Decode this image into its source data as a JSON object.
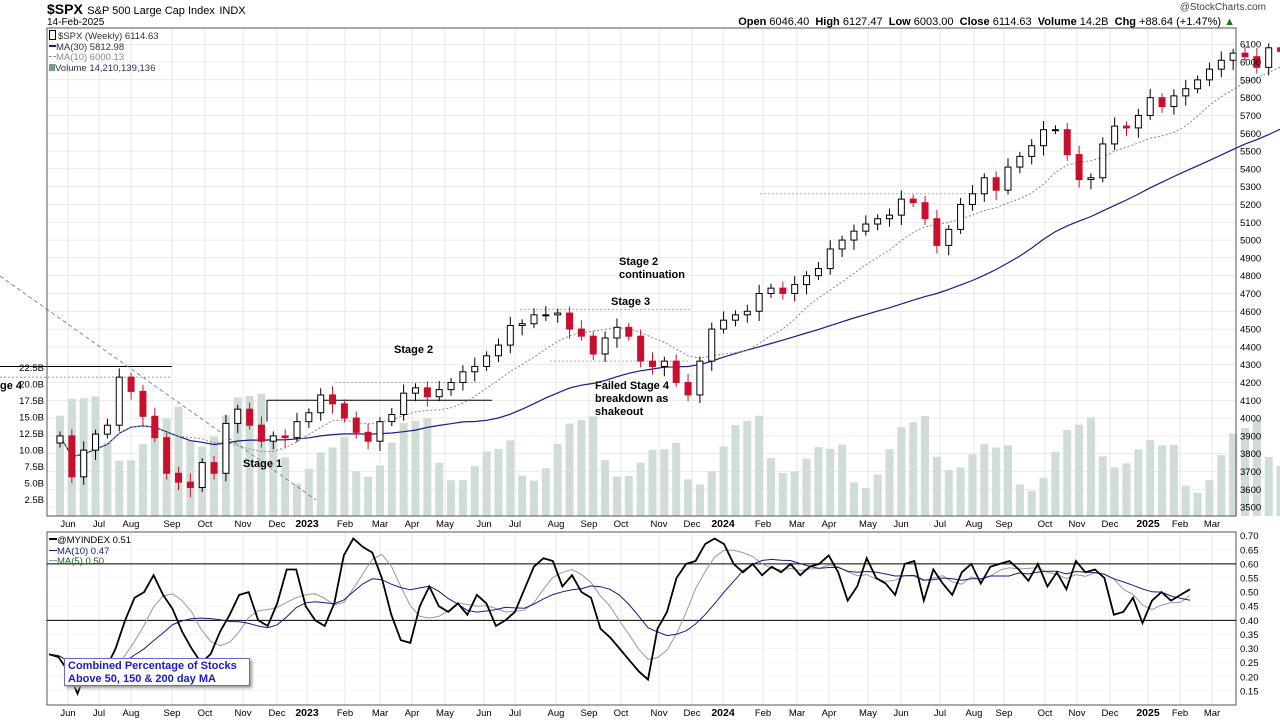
{
  "header": {
    "symbol": "$SPX",
    "name": "S&P 500 Large Cap Index",
    "exchange": "INDX",
    "date": "14-Feb-2025",
    "watermark": "@StockCharts.com",
    "open_label": "Open",
    "open": "6046.40",
    "high_label": "High",
    "high": "6127.47",
    "low_label": "Low",
    "low": "6003.00",
    "close_label": "Close",
    "close": "6114.63",
    "volume_label": "Volume",
    "volume": "14.2B",
    "chg_label": "Chg",
    "chg": "+88.64 (+1.47%)",
    "chg_arrow": "▲"
  },
  "legend_top": {
    "series": "$SPX (Weekly) 6114.63",
    "ma30": "MA(30) 5812.98",
    "ma10": "MA(10) 6000.13",
    "volume": "Volume 14,210,139,136"
  },
  "legend_bottom": {
    "series": "@MYINDEX 0.51",
    "ma10": "MA(10) 0.47",
    "ma5": "MA(5) 0.50"
  },
  "annotations": {
    "stage1": "Stage 1",
    "stage2": "Stage 2",
    "stage3": "Stage 3",
    "stage2c_l1": "Stage 2",
    "stage2c_l2": "continuation",
    "failed_l1": "Failed Stage 4",
    "failed_l2": "breakdown as",
    "failed_l3": "shakeout",
    "left_cut": "ge 4",
    "indicator_box_l1": "Combined Percentage of Stocks",
    "indicator_box_l2": "Above 50, 150 & 200 day MA"
  },
  "colors": {
    "up": "#000000",
    "down": "#c8102e",
    "ma30": "#1a1a8c",
    "ma10": "#888888",
    "volume": "#cfddd6",
    "grid": "#d8d8d8"
  },
  "chart_data": [
    {
      "type": "candlestick",
      "title": "$SPX S&P 500 Large Cap Index INDX",
      "interval": "Weekly",
      "ylim": [
        3450,
        6180
      ],
      "y_ticks": [
        3500,
        3600,
        3700,
        3800,
        3900,
        4000,
        4100,
        4200,
        4300,
        4400,
        4500,
        4600,
        4700,
        4800,
        4900,
        5000,
        5100,
        5200,
        5300,
        5400,
        5500,
        5600,
        5700,
        5800,
        5900,
        6000,
        6100
      ],
      "x_tick_labels": [
        "Jun",
        "Jul",
        "Aug",
        "Sep",
        "Oct",
        "Nov",
        "Dec",
        "2023",
        "Feb",
        "Mar",
        "Apr",
        "May",
        "Jun",
        "Jul",
        "Aug",
        "Sep",
        "Oct",
        "Nov",
        "Dec",
        "2024",
        "Feb",
        "Mar",
        "Apr",
        "May",
        "Jun",
        "Jul",
        "Aug",
        "Sep",
        "Oct",
        "Nov",
        "Dec",
        "2025",
        "Feb",
        "Mar"
      ],
      "close": [
        3900,
        3670,
        3820,
        3910,
        3960,
        4230,
        4150,
        4010,
        3890,
        3690,
        3640,
        3610,
        3750,
        3690,
        3970,
        4050,
        3960,
        3870,
        3900,
        3890,
        3980,
        4030,
        4130,
        4080,
        4000,
        3920,
        3870,
        3980,
        4020,
        4140,
        4170,
        4120,
        4160,
        4200,
        4260,
        4290,
        4350,
        4410,
        4520,
        4530,
        4580,
        4580,
        4590,
        4500,
        4460,
        4360,
        4450,
        4510,
        4460,
        4320,
        4290,
        4320,
        4200,
        4130,
        4320,
        4500,
        4550,
        4580,
        4600,
        4700,
        4730,
        4700,
        4750,
        4800,
        4840,
        4950,
        5000,
        5050,
        5090,
        5120,
        5140,
        5230,
        5210,
        5120,
        4970,
        5060,
        5200,
        5260,
        5350,
        5280,
        5410,
        5470,
        5530,
        5620,
        5620,
        5480,
        5340,
        5350,
        5540,
        5640,
        5630,
        5700,
        5800,
        5750,
        5810,
        5850,
        5900,
        5960,
        6010,
        6050,
        6030,
        5970,
        6080,
        6060,
        5950,
        5990,
        5930,
        6080,
        6120
      ],
      "ma30_final": 5812.98,
      "ma10_final": 6000.13,
      "volume_ylim": [
        0,
        30
      ],
      "volume_ticks": [
        "2.5B",
        "5.0B",
        "7.5B",
        "10.0B",
        "12.5B",
        "15.0B",
        "17.5B",
        "20.0B",
        "22.5B"
      ],
      "volume_final_B": 14.2
    },
    {
      "type": "line",
      "title": "@MYINDEX",
      "ylim": [
        0.1,
        0.72
      ],
      "y_ticks": [
        0.15,
        0.2,
        0.25,
        0.3,
        0.35,
        0.4,
        0.45,
        0.5,
        0.55,
        0.6,
        0.65,
        0.7
      ],
      "reference_lines": [
        0.4,
        0.6
      ],
      "series": [
        {
          "name": "@MYINDEX",
          "final": 0.51
        },
        {
          "name": "MA(10)",
          "final": 0.47
        },
        {
          "name": "MA(5)",
          "final": 0.5
        }
      ],
      "values": [
        0.28,
        0.27,
        0.22,
        0.14,
        0.23,
        0.22,
        0.23,
        0.3,
        0.4,
        0.48,
        0.5,
        0.56,
        0.49,
        0.44,
        0.36,
        0.3,
        0.25,
        0.28,
        0.36,
        0.42,
        0.49,
        0.5,
        0.4,
        0.38,
        0.46,
        0.58,
        0.58,
        0.45,
        0.4,
        0.38,
        0.46,
        0.63,
        0.69,
        0.66,
        0.64,
        0.55,
        0.42,
        0.33,
        0.32,
        0.45,
        0.52,
        0.45,
        0.43,
        0.46,
        0.42,
        0.49,
        0.46,
        0.38,
        0.4,
        0.43,
        0.51,
        0.59,
        0.62,
        0.61,
        0.52,
        0.56,
        0.5,
        0.48,
        0.37,
        0.34,
        0.3,
        0.26,
        0.22,
        0.19,
        0.37,
        0.43,
        0.55,
        0.6,
        0.61,
        0.67,
        0.69,
        0.67,
        0.6,
        0.57,
        0.6,
        0.56,
        0.59,
        0.57,
        0.6,
        0.56,
        0.59,
        0.6,
        0.63,
        0.57,
        0.47,
        0.52,
        0.62,
        0.55,
        0.53,
        0.49,
        0.6,
        0.61,
        0.47,
        0.58,
        0.53,
        0.49,
        0.57,
        0.6,
        0.53,
        0.59,
        0.6,
        0.61,
        0.58,
        0.54,
        0.6,
        0.52,
        0.57,
        0.51,
        0.61,
        0.57,
        0.58,
        0.55,
        0.42,
        0.43,
        0.48,
        0.39,
        0.47,
        0.5,
        0.47,
        0.49,
        0.51
      ]
    }
  ]
}
